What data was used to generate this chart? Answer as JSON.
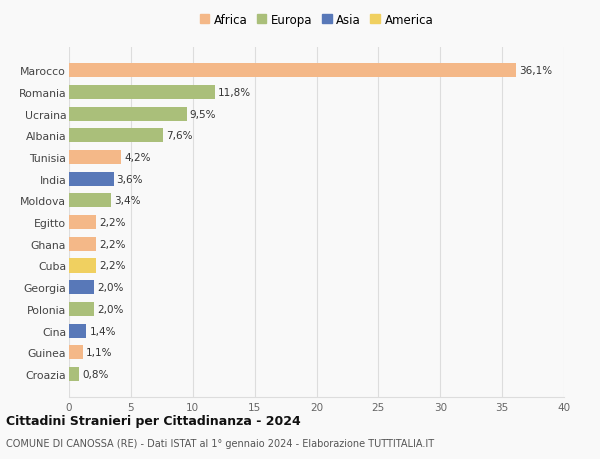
{
  "countries": [
    "Marocco",
    "Romania",
    "Ucraina",
    "Albania",
    "Tunisia",
    "India",
    "Moldova",
    "Egitto",
    "Ghana",
    "Cuba",
    "Georgia",
    "Polonia",
    "Cina",
    "Guinea",
    "Croazia"
  ],
  "values": [
    36.1,
    11.8,
    9.5,
    7.6,
    4.2,
    3.6,
    3.4,
    2.2,
    2.2,
    2.2,
    2.0,
    2.0,
    1.4,
    1.1,
    0.8
  ],
  "labels": [
    "36,1%",
    "11,8%",
    "9,5%",
    "7,6%",
    "4,2%",
    "3,6%",
    "3,4%",
    "2,2%",
    "2,2%",
    "2,2%",
    "2,0%",
    "2,0%",
    "1,4%",
    "1,1%",
    "0,8%"
  ],
  "continents": [
    "Africa",
    "Europa",
    "Europa",
    "Europa",
    "Africa",
    "Asia",
    "Europa",
    "Africa",
    "Africa",
    "America",
    "Asia",
    "Europa",
    "Asia",
    "Africa",
    "Europa"
  ],
  "colors": {
    "Africa": "#F4B888",
    "Europa": "#AABF7A",
    "Asia": "#5878B8",
    "America": "#F0D060"
  },
  "legend_order": [
    "Africa",
    "Europa",
    "Asia",
    "America"
  ],
  "title": "Cittadini Stranieri per Cittadinanza - 2024",
  "subtitle": "COMUNE DI CANOSSA (RE) - Dati ISTAT al 1° gennaio 2024 - Elaborazione TUTTITALIA.IT",
  "xlim": [
    0,
    40
  ],
  "xticks": [
    0,
    5,
    10,
    15,
    20,
    25,
    30,
    35,
    40
  ],
  "background_color": "#f9f9f9",
  "grid_color": "#dddddd"
}
